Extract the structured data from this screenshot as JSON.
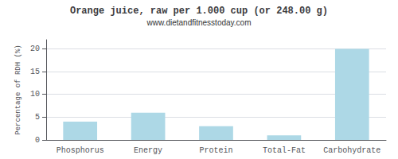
{
  "chart_data": {
    "type": "bar",
    "title": "Orange juice, raw per 1.000 cup (or 248.00 g)",
    "subtitle": "www.dietandfitnesstoday.com",
    "categories": [
      "Phosphorus",
      "Energy",
      "Protein",
      "Total-Fat",
      "Carbohydrate"
    ],
    "values": [
      4,
      6,
      3,
      1,
      20
    ],
    "color": "#add8e6",
    "ylabel": "Percentage of RDH (%)",
    "ylim": [
      0,
      22
    ],
    "yticks": [
      0,
      5,
      10,
      15,
      20
    ],
    "grid": true
  }
}
